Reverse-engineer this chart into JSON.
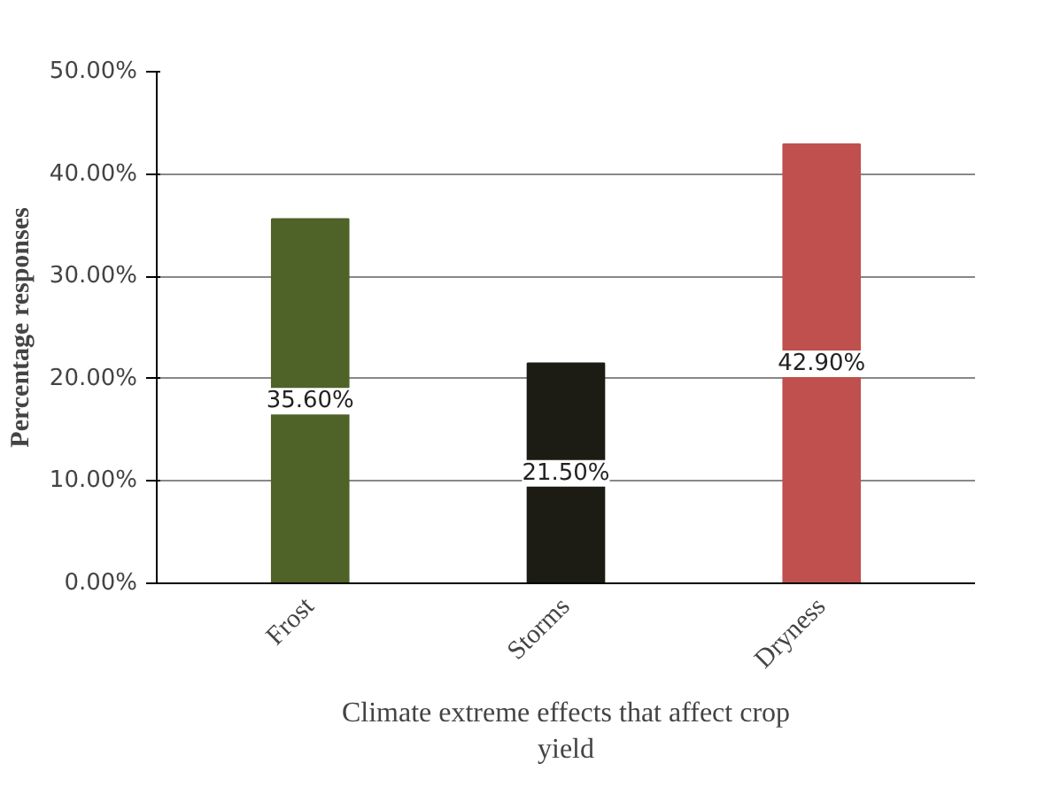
{
  "chart_data": {
    "type": "bar",
    "categories": [
      "Frost",
      "Storms",
      "Dryness"
    ],
    "values": [
      35.6,
      21.5,
      42.9
    ],
    "colors": [
      "#4f6228",
      "#1c1c14",
      "#c0504d"
    ],
    "value_labels": [
      "35.60%",
      "21.50%",
      "42.90%"
    ],
    "ylim": [
      0,
      50
    ],
    "yticks": [
      {
        "value": 0,
        "label": "0.00%"
      },
      {
        "value": 10,
        "label": "10.00%"
      },
      {
        "value": 20,
        "label": "20.00%"
      },
      {
        "value": 30,
        "label": "30.00%"
      },
      {
        "value": 40,
        "label": "40.00%"
      },
      {
        "value": 50,
        "label": "50.00%"
      }
    ],
    "grid": "y",
    "ylabel": "Percentage responses",
    "xlabel": "Climate extreme effects that affect crop yield"
  }
}
